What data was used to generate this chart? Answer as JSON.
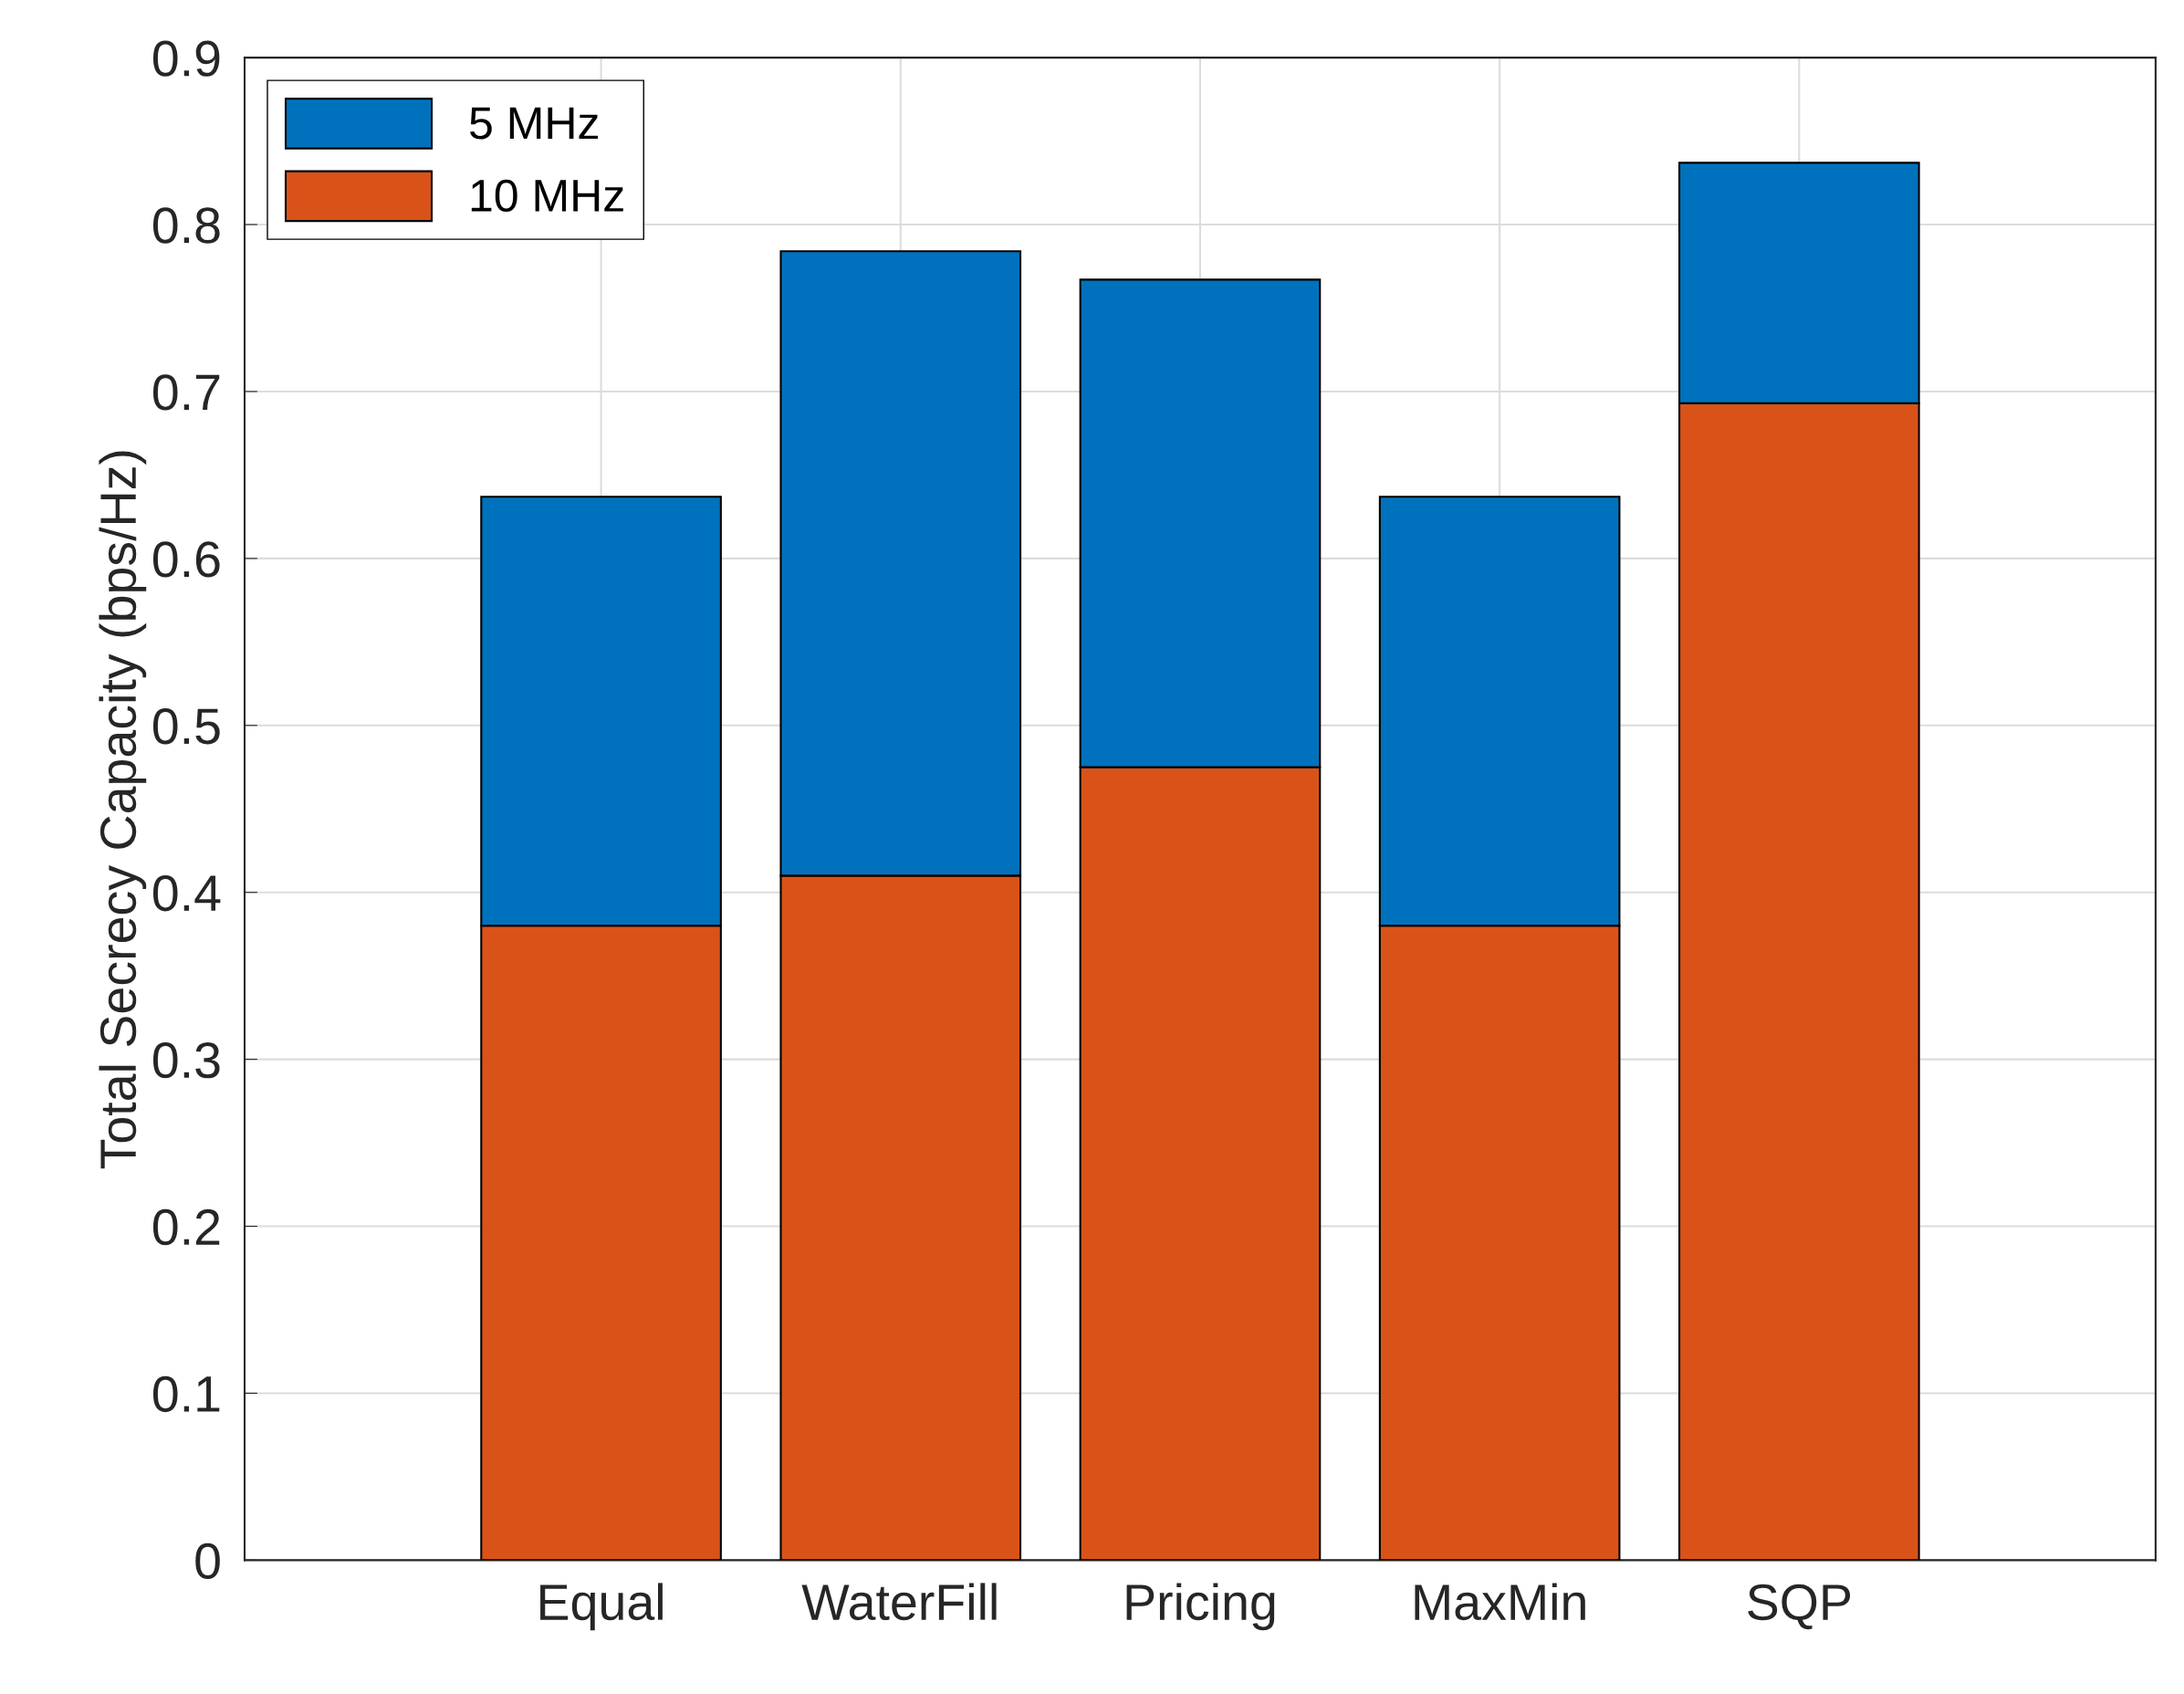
{
  "chart_data": {
    "type": "bar",
    "stacked": true,
    "ylabel": "Total Secrecy Capacity (bps/Hz)",
    "categories": [
      "Equal",
      "WaterFill",
      "Pricing",
      "MaxMin",
      "SQP"
    ],
    "series": [
      {
        "name": "10 MHz",
        "color": "#d95319",
        "values": [
          0.38,
          0.41,
          0.475,
          0.38,
          0.693
        ]
      },
      {
        "name": "5 MHz",
        "color": "#0072bd",
        "values": [
          0.257,
          0.374,
          0.292,
          0.257,
          0.144
        ]
      }
    ],
    "ylim": [
      0,
      0.9
    ],
    "yticks": [
      0,
      0.1,
      0.2,
      0.3,
      0.4,
      0.5,
      0.6,
      0.7,
      0.8,
      0.9
    ],
    "grid": true,
    "legend": "top left"
  }
}
